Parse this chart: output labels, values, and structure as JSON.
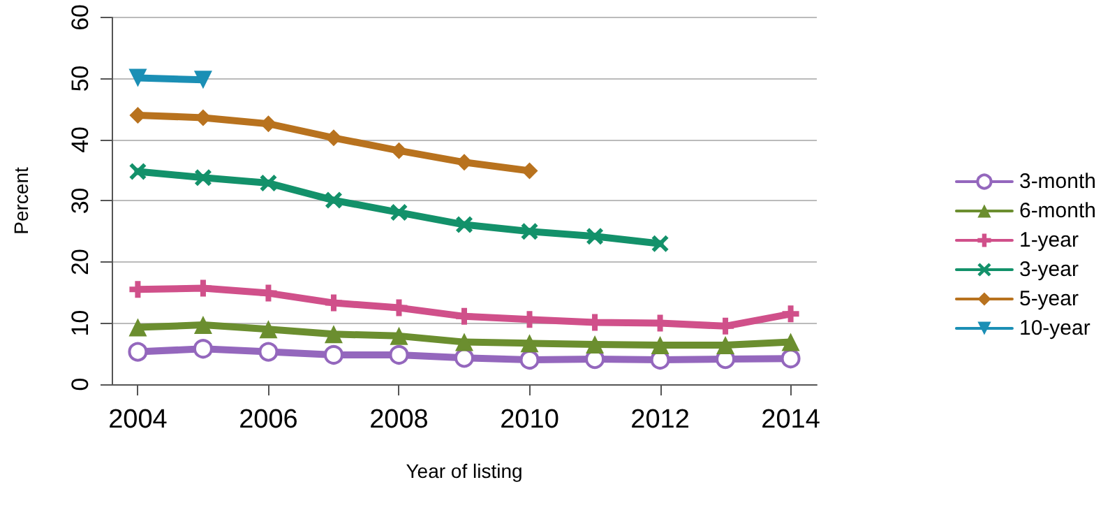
{
  "chart_data": {
    "type": "line",
    "xlabel": "Year of listing",
    "ylabel": "Percent",
    "xlim": [
      2003.6,
      2014.4
    ],
    "xticks": [
      2004,
      2006,
      2008,
      2010,
      2012,
      2014
    ],
    "ylim": [
      0,
      60
    ],
    "yticks": [
      0,
      10,
      20,
      30,
      40,
      50,
      60
    ],
    "grid": "y",
    "legend": "right",
    "line_style": "solid",
    "series": [
      {
        "name": "3-month",
        "color": "#9467bd",
        "marker": "circle",
        "x": [
          2004,
          2005,
          2006,
          2007,
          2008,
          2009,
          2010,
          2011,
          2012,
          2013,
          2014
        ],
        "values": [
          5.3,
          5.8,
          5.3,
          4.8,
          4.8,
          4.3,
          4.0,
          4.1,
          4.0,
          4.1,
          4.2
        ]
      },
      {
        "name": "6-month",
        "color": "#6b8e2f",
        "marker": "triangle",
        "x": [
          2004,
          2005,
          2006,
          2007,
          2008,
          2009,
          2010,
          2011,
          2012,
          2013,
          2014
        ],
        "values": [
          9.3,
          9.7,
          9.0,
          8.2,
          7.9,
          6.9,
          6.7,
          6.5,
          6.4,
          6.4,
          6.9
        ]
      },
      {
        "name": "1-year",
        "color": "#d0508a",
        "marker": "plus",
        "x": [
          2004,
          2005,
          2006,
          2007,
          2008,
          2009,
          2010,
          2011,
          2012,
          2013,
          2014
        ],
        "values": [
          15.5,
          15.7,
          14.9,
          13.3,
          12.5,
          11.1,
          10.6,
          10.1,
          10.0,
          9.5,
          11.5
        ]
      },
      {
        "name": "3-year",
        "color": "#13916a",
        "marker": "cross",
        "x": [
          2004,
          2005,
          2006,
          2007,
          2008,
          2009,
          2010,
          2011,
          2012
        ],
        "values": [
          34.8,
          33.8,
          32.9,
          30.1,
          28.1,
          26.1,
          25.0,
          24.2,
          23.0
        ]
      },
      {
        "name": "5-year",
        "color": "#b8721e",
        "marker": "diamond",
        "x": [
          2004,
          2005,
          2006,
          2007,
          2008,
          2009,
          2010
        ],
        "values": [
          44.0,
          43.6,
          42.6,
          40.3,
          38.2,
          36.3,
          34.9
        ]
      },
      {
        "name": "10-year",
        "color": "#1b8fb5",
        "marker": "triangle-down",
        "x": [
          2004,
          2005
        ],
        "values": [
          50.1,
          49.8
        ]
      }
    ]
  }
}
